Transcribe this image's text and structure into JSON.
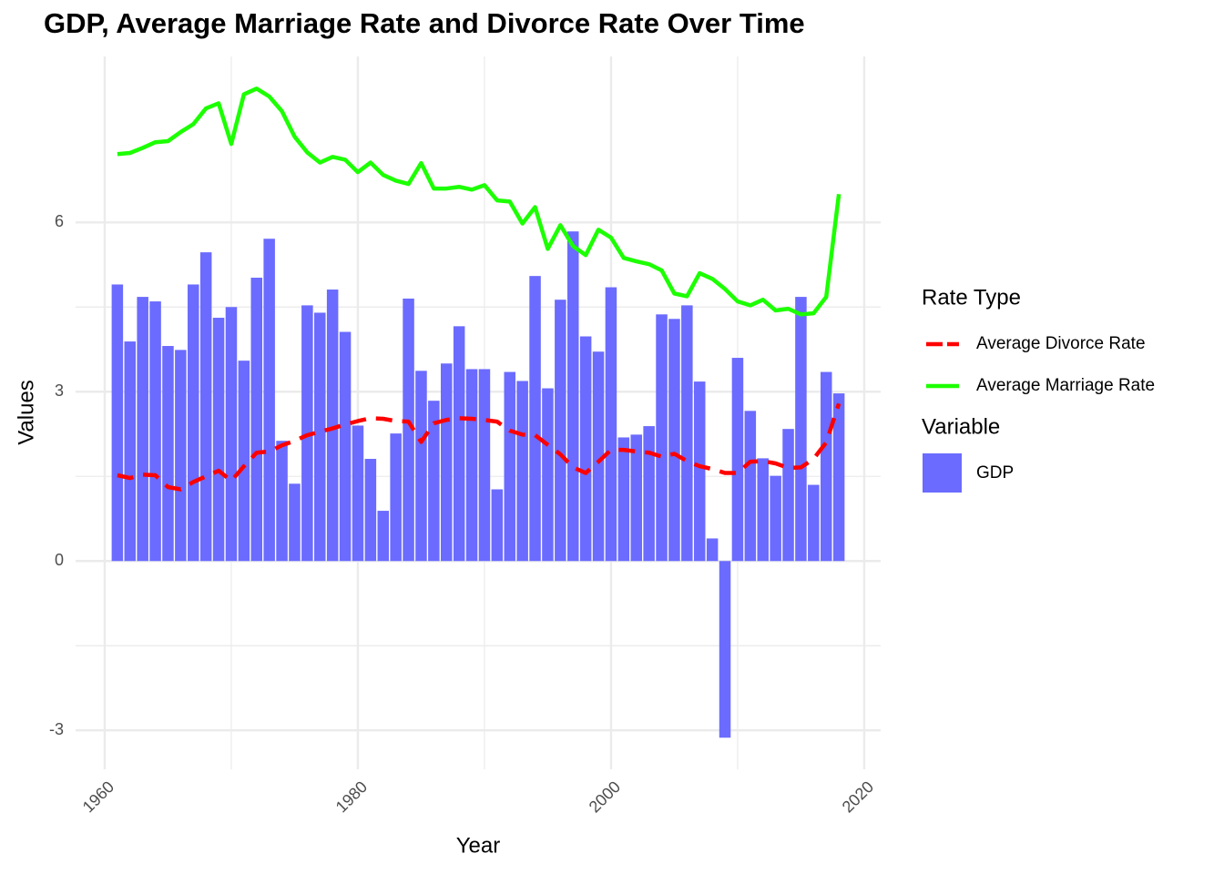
{
  "chart_data": {
    "type": "bar",
    "title": "GDP, Average Marriage Rate and Divorce Rate Over Time",
    "x_label": "Year",
    "y_label": "Values",
    "x": [
      1961,
      1962,
      1963,
      1964,
      1965,
      1966,
      1967,
      1968,
      1969,
      1970,
      1971,
      1972,
      1973,
      1974,
      1975,
      1976,
      1977,
      1978,
      1979,
      1980,
      1981,
      1982,
      1983,
      1984,
      1985,
      1986,
      1987,
      1988,
      1989,
      1990,
      1991,
      1992,
      1993,
      1994,
      1995,
      1996,
      1997,
      1998,
      1999,
      2000,
      2001,
      2002,
      2003,
      2004,
      2005,
      2006,
      2007,
      2008,
      2009,
      2010,
      2011,
      2012,
      2013,
      2014,
      2015,
      2016,
      2017,
      2018
    ],
    "series": [
      {
        "name": "Average Divorce Rate",
        "legend_title": "Rate Type",
        "mark": "line",
        "dashed": true,
        "color": "#ff0000",
        "values": [
          1.52,
          1.47,
          1.53,
          1.52,
          1.31,
          1.27,
          1.4,
          1.5,
          1.6,
          1.42,
          1.68,
          1.92,
          1.94,
          2.05,
          2.13,
          2.23,
          2.29,
          2.35,
          2.42,
          2.48,
          2.53,
          2.52,
          2.48,
          2.47,
          2.11,
          2.44,
          2.5,
          2.53,
          2.52,
          2.5,
          2.47,
          2.31,
          2.24,
          2.23,
          2.06,
          1.89,
          1.66,
          1.56,
          1.76,
          1.97,
          1.97,
          1.94,
          1.92,
          1.85,
          1.9,
          1.77,
          1.68,
          1.63,
          1.56,
          1.56,
          1.76,
          1.77,
          1.73,
          1.65,
          1.66,
          1.81,
          2.1,
          2.79
        ]
      },
      {
        "name": "Average Marriage Rate",
        "legend_title": "Rate Type",
        "mark": "line",
        "dashed": false,
        "color": "#1cff00",
        "values": [
          7.21,
          7.23,
          7.32,
          7.42,
          7.44,
          7.6,
          7.74,
          8.02,
          8.11,
          7.39,
          8.27,
          8.37,
          8.23,
          7.97,
          7.52,
          7.24,
          7.06,
          7.16,
          7.11,
          6.89,
          7.06,
          6.84,
          6.74,
          6.68,
          7.05,
          6.6,
          6.6,
          6.63,
          6.58,
          6.66,
          6.39,
          6.37,
          5.98,
          6.27,
          5.53,
          5.95,
          5.58,
          5.42,
          5.87,
          5.73,
          5.37,
          5.31,
          5.26,
          5.15,
          4.74,
          4.69,
          5.1,
          5.0,
          4.82,
          4.6,
          4.53,
          4.63,
          4.44,
          4.47,
          4.37,
          4.39,
          4.68,
          6.5
        ]
      },
      {
        "name": "GDP",
        "legend_title": "Variable",
        "mark": "bar",
        "color": "#6b6bff",
        "values": [
          4.9,
          3.89,
          4.68,
          4.6,
          3.81,
          3.74,
          4.9,
          5.47,
          4.31,
          4.5,
          3.55,
          5.02,
          5.71,
          2.13,
          1.37,
          4.53,
          4.4,
          4.81,
          4.06,
          2.4,
          1.81,
          0.89,
          2.26,
          4.65,
          3.37,
          2.84,
          3.5,
          4.16,
          3.4,
          3.4,
          1.27,
          3.35,
          3.19,
          5.05,
          3.06,
          4.63,
          5.84,
          3.98,
          3.71,
          4.85,
          2.19,
          2.24,
          2.39,
          4.37,
          4.29,
          4.53,
          3.18,
          0.4,
          -3.13,
          3.6,
          2.66,
          1.82,
          1.51,
          2.34,
          4.68,
          1.35,
          3.35,
          2.97
        ]
      }
    ],
    "xlim": [
      1957.7,
      2021.3
    ],
    "xticks": [
      1960,
      1980,
      2000,
      2020
    ],
    "ylim": [
      -3.69,
      8.94
    ],
    "yticks": [
      -3,
      0,
      3,
      6
    ],
    "grid": true,
    "minor_grid": true,
    "legend": "right"
  }
}
